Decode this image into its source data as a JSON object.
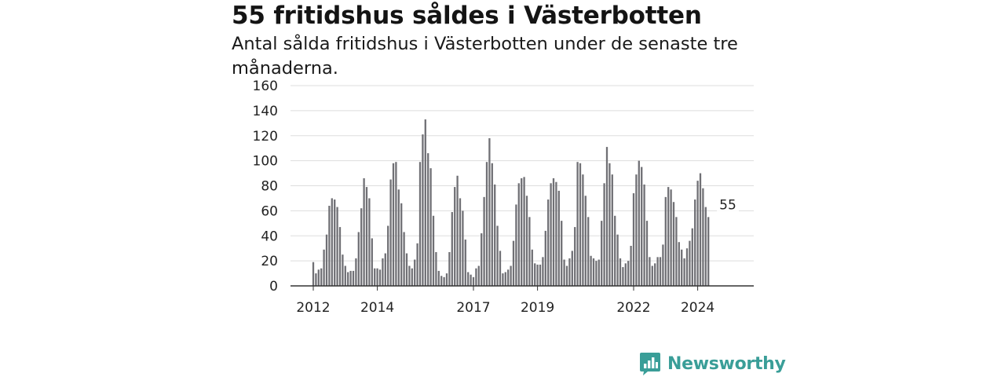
{
  "header": {
    "title": "55 fritidshus såldes i Västerbotten",
    "subtitle": "Antal sålda fritidshus i Västerbotten under de senaste tre månaderna."
  },
  "brand": {
    "name": "Newsworthy",
    "icon": "bar-chart-speech-bubble-icon",
    "color": "#3a9e98"
  },
  "colors": {
    "bar": "#707075",
    "highlight": "#29a39b",
    "grid": "#dddddd",
    "axis": "#333333"
  },
  "chart_data": {
    "type": "bar",
    "title": "55 fritidshus såldes i Västerbotten",
    "subtitle": "Antal sålda fritidshus i Västerbotten under de senaste tre månaderna.",
    "xlabel": "",
    "ylabel": "",
    "ylim": [
      0,
      160
    ],
    "yticks": [
      0,
      20,
      40,
      60,
      80,
      100,
      120,
      140,
      160
    ],
    "xticks": [
      {
        "label": "2012",
        "index": 0
      },
      {
        "label": "2014",
        "index": 24
      },
      {
        "label": "2017",
        "index": 60
      },
      {
        "label": "2019",
        "index": 84
      },
      {
        "label": "2022",
        "index": 120
      },
      {
        "label": "2024",
        "index": 144
      }
    ],
    "grid": true,
    "highlight": {
      "index": 155,
      "value": 55,
      "label": "55"
    },
    "series": [
      {
        "values": [
          19,
          10,
          13,
          14,
          29,
          41,
          64,
          70,
          69,
          63,
          47,
          25,
          16,
          11,
          12,
          12,
          22,
          43,
          62,
          86,
          79,
          70,
          38,
          14,
          14,
          13,
          22,
          26,
          48,
          85,
          98,
          99,
          77,
          66,
          43,
          26,
          16,
          14,
          21,
          34,
          99,
          121,
          133,
          106,
          94,
          56,
          27,
          12,
          8,
          7,
          10,
          27,
          59,
          79,
          88,
          70,
          60,
          37,
          11,
          9,
          7,
          14,
          16,
          42,
          71,
          99,
          118,
          98,
          81,
          48,
          28,
          10,
          11,
          13,
          16,
          36,
          65,
          82,
          86,
          87,
          72,
          55,
          29,
          18,
          17,
          17,
          23,
          44,
          69,
          82,
          86,
          83,
          76,
          52,
          21,
          16,
          22,
          28,
          47,
          99,
          98,
          89,
          72,
          55,
          24,
          22,
          20,
          21,
          52,
          82,
          111,
          98,
          89,
          56,
          41,
          22,
          15,
          18,
          20,
          32,
          74,
          89,
          100,
          95,
          81,
          52,
          23,
          16,
          18,
          23,
          23,
          33,
          71,
          79,
          77,
          67,
          55,
          35,
          29,
          22,
          30,
          36,
          46,
          69,
          84,
          90,
          78,
          63,
          55
        ]
      }
    ]
  }
}
